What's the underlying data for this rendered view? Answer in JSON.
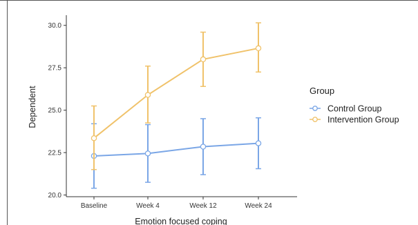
{
  "chart_data": {
    "type": "line",
    "title": "",
    "xlabel": "Emotion focused coping",
    "ylabel": "Dependent",
    "categories": [
      "Baseline",
      "Week 4",
      "Week 12",
      "Week 24"
    ],
    "ylim": [
      19.9,
      30.6
    ],
    "yticks": [
      20.0,
      22.5,
      25.0,
      27.5,
      30.0
    ],
    "ytick_labels": [
      "20.0",
      "22.5",
      "25.0",
      "27.5",
      "30.0"
    ],
    "grid": false,
    "legend": {
      "title": "Group",
      "placement": "right"
    },
    "series": [
      {
        "name": "Control Group",
        "color": "#7aa6e6",
        "values": [
          22.3,
          22.45,
          22.85,
          23.05
        ],
        "lower": [
          20.4,
          20.75,
          21.2,
          21.55
        ],
        "upper": [
          24.2,
          24.15,
          24.5,
          24.55
        ]
      },
      {
        "name": "Intervention Group",
        "color": "#f0c26a",
        "values": [
          23.35,
          25.9,
          28.0,
          28.65
        ],
        "lower": [
          21.5,
          24.25,
          26.4,
          27.25
        ],
        "upper": [
          25.25,
          27.6,
          29.6,
          30.15
        ]
      }
    ]
  }
}
